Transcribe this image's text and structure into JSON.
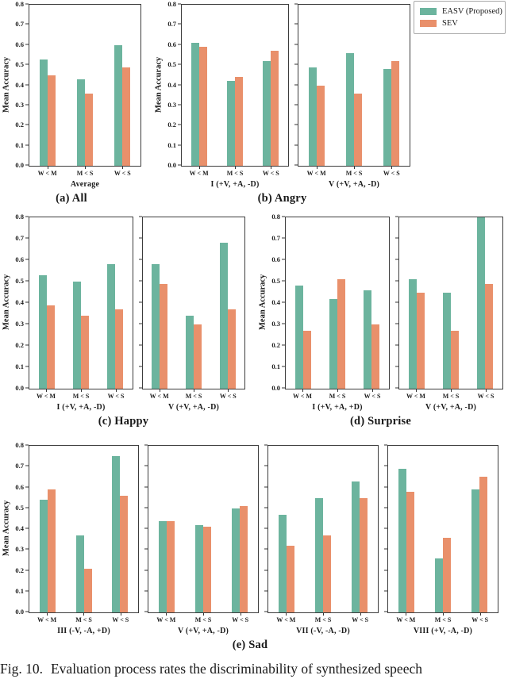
{
  "figure": {
    "caption_prefix": "Fig. 10.",
    "caption_text": "Evaluation process rates the discriminability of synthesized speech"
  },
  "legend": {
    "items": [
      {
        "label": "EASV (Proposed)",
        "color": "#6cb49e"
      },
      {
        "label": "SEV",
        "color": "#e9906b"
      }
    ]
  },
  "axes": {
    "ylabel": "Mean Accuracy",
    "yticks": [
      "0.8",
      "0.7",
      "0.6",
      "0.5",
      "0.4",
      "0.3",
      "0.2",
      "0.1",
      "0.0"
    ],
    "ylim": [
      0.0,
      0.8
    ],
    "categories": [
      "W < M",
      "M < S",
      "W < S"
    ],
    "grid": false,
    "legend_position": "top-right"
  },
  "panels": [
    {
      "key": "a",
      "label": "(a) All"
    },
    {
      "key": "b",
      "label": "(b) Angry"
    },
    {
      "key": "c",
      "label": "(c) Happy"
    },
    {
      "key": "d",
      "label": "(d) Surprise"
    },
    {
      "key": "e",
      "label": "(e) Sad"
    }
  ],
  "chart_data": [
    {
      "type": "bar",
      "panel": "a",
      "xlabel": "Average",
      "has_ylabel": true,
      "categories": [
        "W < M",
        "M < S",
        "W < S"
      ],
      "series": [
        {
          "name": "EASV (Proposed)",
          "values": [
            0.53,
            0.43,
            0.6
          ]
        },
        {
          "name": "SEV",
          "values": [
            0.45,
            0.36,
            0.49
          ]
        }
      ]
    },
    {
      "type": "bar",
      "panel": "b",
      "xlabel": "I (+V, +A, -D)",
      "has_ylabel": true,
      "categories": [
        "W < M",
        "M < S",
        "W < S"
      ],
      "series": [
        {
          "name": "EASV (Proposed)",
          "values": [
            0.61,
            0.42,
            0.52
          ]
        },
        {
          "name": "SEV",
          "values": [
            0.59,
            0.44,
            0.57
          ]
        }
      ]
    },
    {
      "type": "bar",
      "panel": "b",
      "xlabel": "V (+V, +A, -D)",
      "has_ylabel": false,
      "categories": [
        "W < M",
        "M < S",
        "W < S"
      ],
      "series": [
        {
          "name": "EASV (Proposed)",
          "values": [
            0.49,
            0.56,
            0.48
          ]
        },
        {
          "name": "SEV",
          "values": [
            0.4,
            0.36,
            0.52
          ]
        }
      ]
    },
    {
      "type": "bar",
      "panel": "c",
      "xlabel": "I (+V, +A, -D)",
      "has_ylabel": true,
      "categories": [
        "W < M",
        "M < S",
        "W < S"
      ],
      "series": [
        {
          "name": "EASV (Proposed)",
          "values": [
            0.53,
            0.5,
            0.58
          ]
        },
        {
          "name": "SEV",
          "values": [
            0.39,
            0.34,
            0.37
          ]
        }
      ]
    },
    {
      "type": "bar",
      "panel": "c",
      "xlabel": "V (+V, +A, -D)",
      "has_ylabel": false,
      "categories": [
        "W < M",
        "M < S",
        "W < S"
      ],
      "series": [
        {
          "name": "EASV (Proposed)",
          "values": [
            0.58,
            0.34,
            0.68
          ]
        },
        {
          "name": "SEV",
          "values": [
            0.49,
            0.3,
            0.37
          ]
        }
      ]
    },
    {
      "type": "bar",
      "panel": "d",
      "xlabel": "I (+V, +A, +D)",
      "has_ylabel": true,
      "categories": [
        "W < M",
        "M < S",
        "W < S"
      ],
      "series": [
        {
          "name": "EASV (Proposed)",
          "values": [
            0.48,
            0.42,
            0.46
          ]
        },
        {
          "name": "SEV",
          "values": [
            0.27,
            0.51,
            0.3
          ]
        }
      ]
    },
    {
      "type": "bar",
      "panel": "d",
      "xlabel": "V (+V, +A, -D)",
      "has_ylabel": false,
      "categories": [
        "W < M",
        "M < S",
        "W < S"
      ],
      "series": [
        {
          "name": "EASV (Proposed)",
          "values": [
            0.51,
            0.45,
            0.8
          ]
        },
        {
          "name": "SEV",
          "values": [
            0.45,
            0.27,
            0.49
          ]
        }
      ]
    },
    {
      "type": "bar",
      "panel": "e",
      "xlabel": "III (-V, -A, +D)",
      "has_ylabel": true,
      "categories": [
        "W < M",
        "M < S",
        "W < S"
      ],
      "series": [
        {
          "name": "EASV (Proposed)",
          "values": [
            0.54,
            0.37,
            0.75
          ]
        },
        {
          "name": "SEV",
          "values": [
            0.59,
            0.21,
            0.56
          ]
        }
      ]
    },
    {
      "type": "bar",
      "panel": "e",
      "xlabel": "V (+V, +A, -D)",
      "has_ylabel": false,
      "categories": [
        "W < M",
        "M < S",
        "W < S"
      ],
      "series": [
        {
          "name": "EASV (Proposed)",
          "values": [
            0.44,
            0.42,
            0.5
          ]
        },
        {
          "name": "SEV",
          "values": [
            0.44,
            0.41,
            0.51
          ]
        }
      ]
    },
    {
      "type": "bar",
      "panel": "e",
      "xlabel": "VII (-V, -A, -D)",
      "has_ylabel": false,
      "categories": [
        "W < M",
        "M < S",
        "W < S"
      ],
      "series": [
        {
          "name": "EASV (Proposed)",
          "values": [
            0.47,
            0.55,
            0.63
          ]
        },
        {
          "name": "SEV",
          "values": [
            0.32,
            0.37,
            0.55
          ]
        }
      ]
    },
    {
      "type": "bar",
      "panel": "e",
      "xlabel": "VIII (+V, -A, -D)",
      "has_ylabel": false,
      "categories": [
        "W < M",
        "M < S",
        "W < S"
      ],
      "series": [
        {
          "name": "EASV (Proposed)",
          "values": [
            0.69,
            0.26,
            0.59
          ]
        },
        {
          "name": "SEV",
          "values": [
            0.58,
            0.36,
            0.65
          ]
        }
      ]
    }
  ]
}
